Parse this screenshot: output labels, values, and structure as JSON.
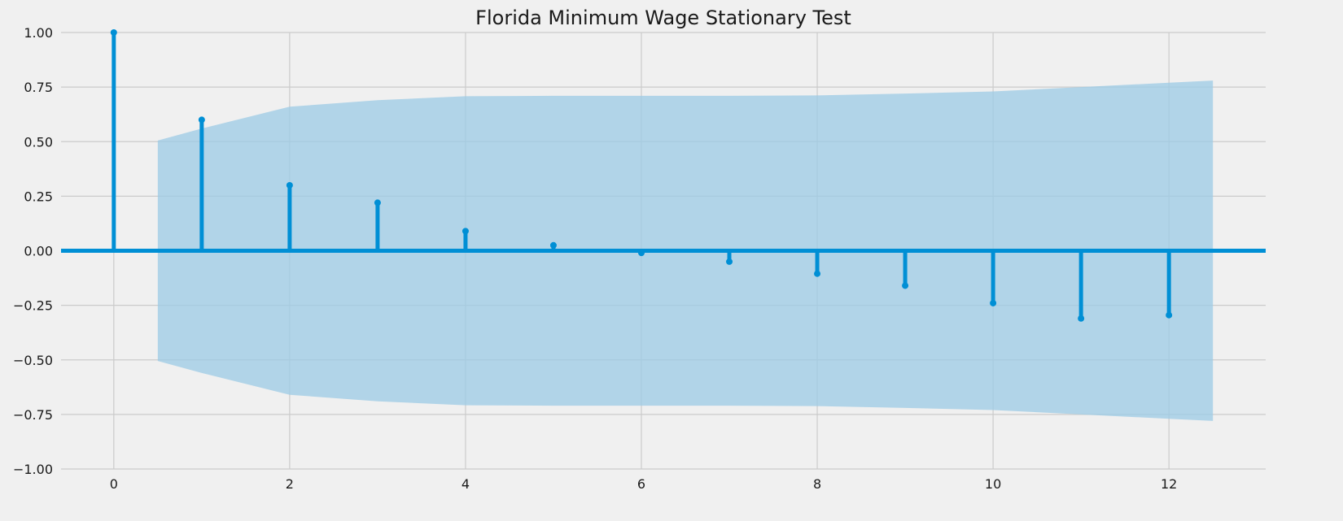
{
  "chart_data": {
    "type": "stem",
    "title": "Florida Minimum Wage Stationary Test",
    "xlabel": "",
    "ylabel": "",
    "xlim": [
      -0.6,
      13.1
    ],
    "ylim": [
      -1.0,
      1.0
    ],
    "x_ticks": [
      0,
      2,
      4,
      6,
      8,
      10,
      12
    ],
    "y_ticks": [
      1.0,
      0.75,
      0.5,
      0.25,
      0.0,
      -0.25,
      -0.5,
      -0.75,
      -1.0
    ],
    "x_tick_labels": [
      "0",
      "2",
      "4",
      "6",
      "8",
      "10",
      "12"
    ],
    "y_tick_labels": [
      "1.00",
      "0.75",
      "0.50",
      "0.25",
      "0.00",
      "−0.25",
      "−0.50",
      "−0.75",
      "−1.00"
    ],
    "grid": true,
    "series": [
      {
        "x": [
          0,
          1,
          2,
          3,
          4,
          5,
          6,
          7,
          8,
          9,
          10,
          11,
          12
        ],
        "values": [
          1.0,
          0.6,
          0.3,
          0.22,
          0.09,
          0.025,
          -0.01,
          -0.05,
          -0.105,
          -0.16,
          -0.24,
          -0.31,
          -0.295
        ],
        "color": "#008fd5"
      }
    ],
    "confidence_band": {
      "x": [
        0.5,
        1,
        2,
        3,
        4,
        5,
        6,
        7,
        8,
        9,
        10,
        11,
        12,
        12.5
      ],
      "upper": [
        0.505,
        0.56,
        0.66,
        0.69,
        0.708,
        0.71,
        0.71,
        0.71,
        0.712,
        0.72,
        0.73,
        0.75,
        0.77,
        0.78
      ],
      "lower": [
        -0.505,
        -0.56,
        -0.66,
        -0.69,
        -0.708,
        -0.71,
        -0.71,
        -0.71,
        -0.712,
        -0.72,
        -0.73,
        -0.75,
        -0.77,
        -0.78
      ],
      "color": "#9ccbe5"
    },
    "colors": {
      "background": "#f0f0f0",
      "grid": "#cbcbcb",
      "stem": "#008fd5",
      "band": "#9ccbe5"
    }
  }
}
